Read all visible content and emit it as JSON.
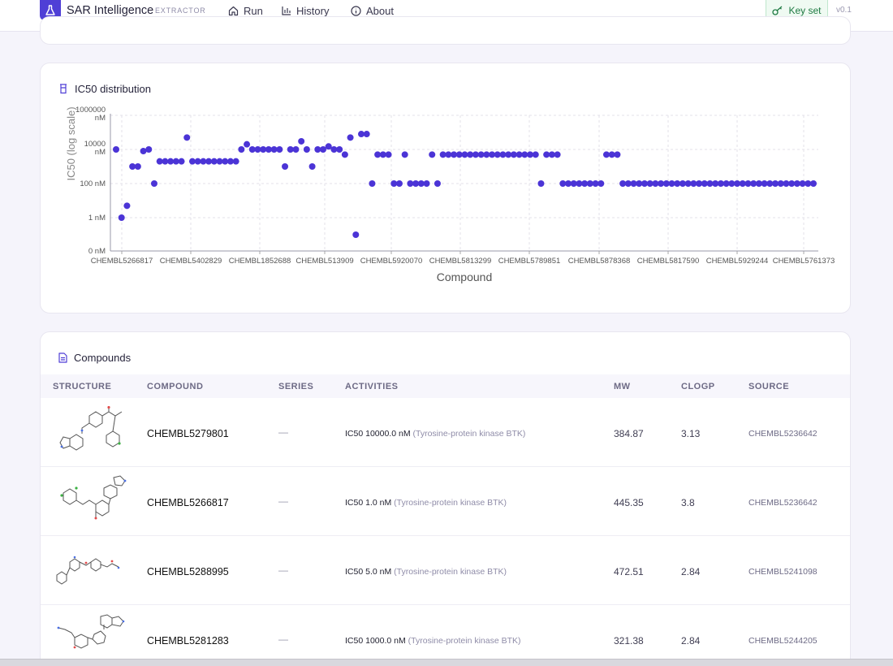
{
  "nav": {
    "brand": "SAR Intelligence",
    "brand_sub": "EXTRACTOR",
    "items": [
      {
        "label": "Run",
        "icon": "home-icon"
      },
      {
        "label": "History",
        "icon": "bar-chart-icon"
      },
      {
        "label": "About",
        "icon": "info-icon"
      }
    ],
    "key_label": "Key set",
    "version": "v0.1"
  },
  "colors": {
    "accent": "#4f3fd6",
    "point": "#4b34d6",
    "key_green": "#1f7a43"
  },
  "chart_card": {
    "title": "IC50 distribution"
  },
  "chart_data": {
    "type": "scatter",
    "title": "IC50 distribution",
    "xlabel": "Compound",
    "ylabel": "IC50 (log scale)",
    "y_scale": "log",
    "y_ticks": [
      "0 nM",
      "1 nM",
      "100 nM",
      "10000 nM",
      "1000000 nM"
    ],
    "x_tick_labels": [
      "CHEMBL5266817",
      "CHEMBL5402829",
      "CHEMBL1852688",
      "CHEMBL513909",
      "CHEMBL5920070",
      "CHEMBL5813299",
      "CHEMBL5789851",
      "CHEMBL5878368",
      "CHEMBL5817590",
      "CHEMBL5929244",
      "CHEMBL5761373"
    ],
    "grid": true,
    "values_nM": [
      10000,
      1,
      5,
      1000,
      1000,
      8000,
      10000,
      100,
      2000,
      2000,
      2000,
      2000,
      2000,
      50000,
      2000,
      2000,
      2000,
      2000,
      2000,
      2000,
      2000,
      2000,
      2000,
      10000,
      20000,
      10000,
      10000,
      10000,
      10000,
      10000,
      10000,
      1000,
      10000,
      10000,
      30000,
      10000,
      1000,
      10000,
      10000,
      15000,
      10000,
      10000,
      5000,
      50000,
      0.1,
      80000,
      80000,
      100,
      5000,
      5000,
      5000,
      100,
      100,
      5000,
      100,
      100,
      100,
      100,
      5000,
      100,
      5000,
      5000,
      5000,
      5000,
      5000,
      5000,
      5000,
      5000,
      5000,
      5000,
      5000,
      5000,
      5000,
      5000,
      5000,
      5000,
      5000,
      5000,
      100,
      5000,
      5000,
      5000,
      100,
      100,
      100,
      100,
      100,
      100,
      100,
      100,
      5000,
      5000,
      5000,
      100,
      100,
      100,
      100,
      100,
      100,
      100,
      100,
      100,
      100,
      100,
      100,
      100,
      100,
      100,
      100,
      100,
      100,
      100,
      100,
      100,
      100,
      100,
      100,
      100,
      100,
      100,
      100,
      100,
      100,
      100,
      100,
      100,
      100,
      100,
      100
    ]
  },
  "table": {
    "title": "Compounds",
    "columns": [
      "STRUCTURE",
      "COMPOUND",
      "SERIES",
      "ACTIVITIES",
      "MW",
      "CLOGP",
      "SOURCE"
    ],
    "rows": [
      {
        "compound": "CHEMBL5279801",
        "series": "—",
        "act_type": "IC50",
        "act_value": "10000.0 nM",
        "act_target": "(Tyrosine-protein kinase BTK)",
        "mw": "384.87",
        "clogp": "3.13",
        "source": "CHEMBL5236642"
      },
      {
        "compound": "CHEMBL5266817",
        "series": "—",
        "act_type": "IC50",
        "act_value": "1.0 nM",
        "act_target": "(Tyrosine-protein kinase BTK)",
        "mw": "445.35",
        "clogp": "3.8",
        "source": "CHEMBL5236642"
      },
      {
        "compound": "CHEMBL5288995",
        "series": "—",
        "act_type": "IC50",
        "act_value": "5.0 nM",
        "act_target": "(Tyrosine-protein kinase BTK)",
        "mw": "472.51",
        "clogp": "2.84",
        "source": "CHEMBL5241098"
      },
      {
        "compound": "CHEMBL5281283",
        "series": "—",
        "act_type": "IC50",
        "act_value": "1000.0 nM",
        "act_target": "(Tyrosine-protein kinase BTK)",
        "mw": "321.38",
        "clogp": "2.84",
        "source": "CHEMBL5244205"
      }
    ]
  }
}
